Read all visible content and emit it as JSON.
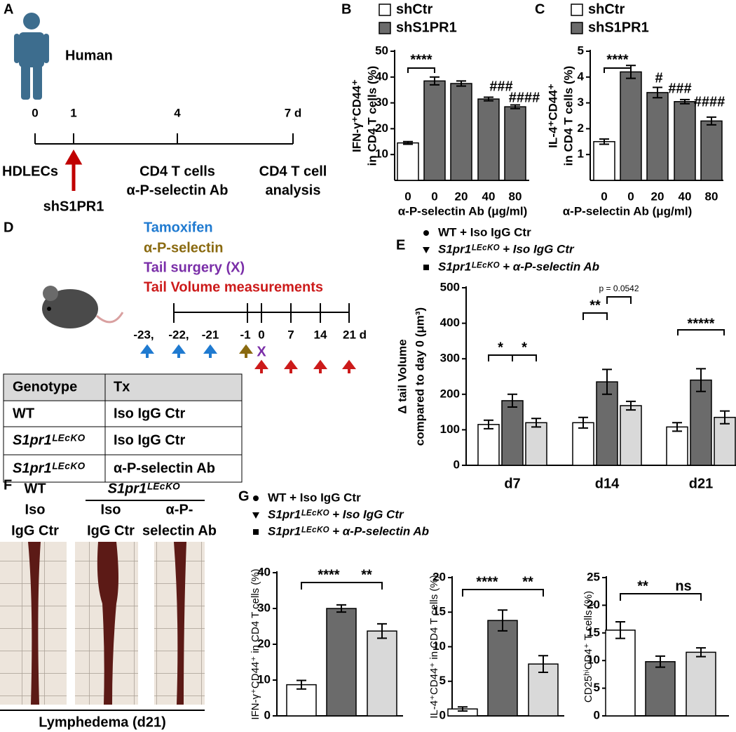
{
  "panels": {
    "letters": [
      "A",
      "B",
      "C",
      "D",
      "E",
      "F",
      "G"
    ],
    "A": {
      "subject": "Human",
      "timeline": [
        "0",
        "1",
        "4",
        "7 d"
      ],
      "steps": [
        "HDLECs",
        "shS1PR1",
        "CD4 T cells",
        "α-P-selectin Ab",
        "CD4 T cell",
        "analysis"
      ]
    },
    "D": {
      "legend": [
        "Tamoxifen",
        "α-P-selectin",
        "Tail surgery (X)",
        "Tail Volume measurements"
      ],
      "timeline": [
        "-23,",
        "-22,",
        "-21",
        "-1",
        "0",
        "7",
        "14",
        "21 d"
      ],
      "surgery_mark": "X",
      "table": {
        "header": [
          "Genotype",
          "Tx"
        ],
        "rows": [
          [
            "WT",
            "Iso IgG Ctr"
          ],
          [
            "S1pr1ᴸᴱᶜᴷᴼ",
            "Iso IgG Ctr"
          ],
          [
            "S1pr1ᴸᴱᶜᴷᴼ",
            "α-P-selectin Ab"
          ]
        ]
      }
    },
    "F": {
      "labels": [
        "WT",
        "Iso",
        "IgG Ctr",
        "S1pr1ᴸᴱᶜᴷᴼ",
        "Iso",
        "IgG Ctr",
        "α-P-",
        "selectin Ab"
      ],
      "caption": "Lymphedema (d21)"
    }
  },
  "chart_data": [
    {
      "type": "bar",
      "legend": [
        {
          "name": "shCtr",
          "color": "#ffffff"
        },
        {
          "name": "shS1PR1",
          "color": "#6b6b6b"
        }
      ],
      "categories": [
        "0",
        "0",
        "20",
        "40",
        "80"
      ],
      "values": [
        14.5,
        38.5,
        37.5,
        31.5,
        28.5
      ],
      "errors": [
        0.5,
        1.5,
        1,
        0.7,
        0.7
      ],
      "colors": [
        "#ffffff",
        "#6b6b6b",
        "#6b6b6b",
        "#6b6b6b",
        "#6b6b6b"
      ],
      "ylim": [
        0,
        50
      ],
      "yticks": [
        10,
        20,
        30,
        40,
        50
      ],
      "ylabel": [
        "IFN-γ⁺CD44⁺",
        "in CD4 T cells (%)"
      ],
      "xlabel": "α-P-selectin Ab (μg/ml)",
      "annotations": [
        "****",
        "###",
        "####"
      ]
    },
    {
      "type": "bar",
      "legend": [
        {
          "name": "shCtr",
          "color": "#ffffff"
        },
        {
          "name": "shS1PR1",
          "color": "#6b6b6b"
        }
      ],
      "categories": [
        "0",
        "0",
        "20",
        "40",
        "80"
      ],
      "values": [
        1.5,
        4.2,
        3.4,
        3.05,
        2.3
      ],
      "errors": [
        0.1,
        0.25,
        0.2,
        0.08,
        0.15
      ],
      "colors": [
        "#ffffff",
        "#6b6b6b",
        "#6b6b6b",
        "#6b6b6b",
        "#6b6b6b"
      ],
      "ylim": [
        0,
        5
      ],
      "yticks": [
        1,
        2,
        3,
        4,
        5
      ],
      "ylabel": [
        "IL-4⁺CD44⁺",
        "in CD4 T cells (%)"
      ],
      "xlabel": "α-P-selectin Ab (μg/ml)",
      "annotations": [
        "****",
        "#",
        "###",
        "####"
      ]
    },
    {
      "type": "bar",
      "categories": [
        "d7",
        "d14",
        "d21"
      ],
      "series": [
        {
          "name": "WT + Iso IgG Ctr",
          "color": "#ffffff",
          "values": [
            115,
            120,
            108
          ],
          "errors": [
            12,
            15,
            12
          ]
        },
        {
          "name": "S1pr1ᴸᴱᶜᴷᴼ + Iso IgG Ctr",
          "color": "#6b6b6b",
          "values": [
            182,
            235,
            240
          ],
          "errors": [
            18,
            35,
            32
          ]
        },
        {
          "name": "S1pr1ᴸᴱᶜᴷᴼ + α-P-selectin Ab",
          "color": "#d9d9d9",
          "values": [
            120,
            168,
            135
          ],
          "errors": [
            12,
            12,
            18
          ]
        }
      ],
      "ylim": [
        0,
        500
      ],
      "yticks": [
        0,
        100,
        200,
        300,
        400,
        500
      ],
      "ylabel": [
        "Δ tail Volume",
        "compared to day 0 (μm³)"
      ],
      "annotations": [
        "*",
        "*",
        "**",
        "p = 0.0542",
        "*****"
      ]
    },
    {
      "type": "bar",
      "legend": [
        "WT + Iso IgG Ctr",
        "S1pr1ᴸᴱᶜᴷᴼ + Iso IgG Ctr",
        "S1pr1ᴸᴱᶜᴷᴼ + α-P-selectin Ab"
      ],
      "categories": [
        null,
        null,
        null
      ],
      "values": [
        8.7,
        30,
        23.7
      ],
      "errors": [
        1.2,
        1,
        2
      ],
      "colors": [
        "#ffffff",
        "#6b6b6b",
        "#d9d9d9"
      ],
      "ylim": [
        0,
        40
      ],
      "yticks": [
        0,
        10,
        20,
        30,
        40
      ],
      "ylabel": [
        "IFN-γ⁺CD44⁺ in CD4 T cells (%)"
      ],
      "annotations": [
        "****",
        "**"
      ]
    },
    {
      "type": "bar",
      "categories": [
        null,
        null,
        null
      ],
      "values": [
        1,
        13.8,
        7.5
      ],
      "errors": [
        0.3,
        1.5,
        1.2
      ],
      "colors": [
        "#ffffff",
        "#6b6b6b",
        "#d9d9d9"
      ],
      "ylim": [
        0,
        20
      ],
      "yticks": [
        0,
        5,
        10,
        15,
        20
      ],
      "ylabel": [
        "IL-4⁺CD44⁺ in CD4 T cells (%)"
      ],
      "annotations": [
        "****",
        "**"
      ]
    },
    {
      "type": "bar",
      "categories": [
        null,
        null,
        null
      ],
      "values": [
        15.5,
        9.8,
        11.5
      ],
      "errors": [
        1.5,
        1,
        0.8
      ],
      "colors": [
        "#ffffff",
        "#6b6b6b",
        "#d9d9d9"
      ],
      "ylim": [
        0,
        25
      ],
      "yticks": [
        0,
        5,
        10,
        15,
        20,
        25
      ],
      "ylabel": [
        "CD25ʰⁱCD4⁺ T cells (%)"
      ],
      "annotations": [
        "**",
        "ns"
      ]
    }
  ]
}
